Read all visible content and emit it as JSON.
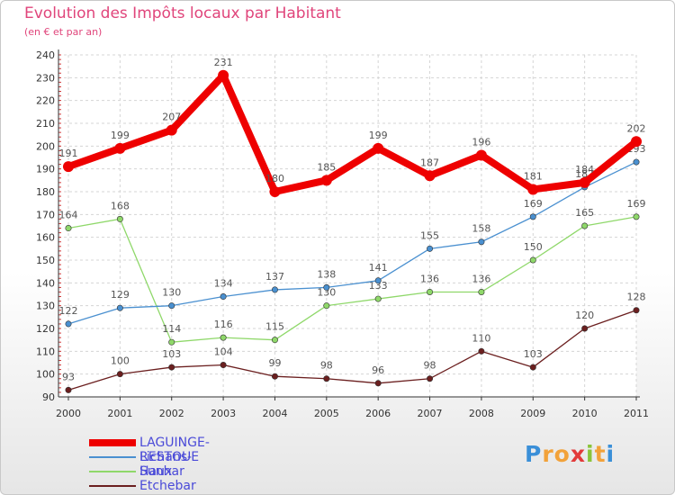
{
  "title": "Evolution des Impôts locaux par Habitant",
  "subtitle": "(en € et par an)",
  "logo": {
    "chars": [
      "P",
      "r",
      "o",
      "x",
      "i",
      "t",
      "i"
    ],
    "colors": [
      "#3a8fd8",
      "#f2a23a",
      "#f2a23a",
      "#e23a3a",
      "#8ac43a",
      "#f2a23a",
      "#3a8fd8"
    ]
  },
  "chart_data": {
    "type": "line",
    "title": "Evolution des Impôts locaux par Habitant",
    "subtitle": "(en € et par an)",
    "categories": [
      "2000",
      "2001",
      "2002",
      "2003",
      "2004",
      "2005",
      "2006",
      "2007",
      "2008",
      "2009",
      "2010",
      "2011"
    ],
    "ylim": [
      90,
      240
    ],
    "yticks": [
      90,
      100,
      110,
      120,
      130,
      140,
      150,
      160,
      170,
      180,
      190,
      200,
      210,
      220,
      230,
      240
    ],
    "series": [
      {
        "name": "Etchebar",
        "color": "#6b1f1f",
        "values": [
          93,
          100,
          103,
          104,
          99,
          98,
          96,
          98,
          110,
          103,
          120,
          128
        ]
      },
      {
        "name": "Haux",
        "color": "#8fd86a",
        "values": [
          164,
          168,
          114,
          116,
          115,
          130,
          133,
          136,
          136,
          150,
          165,
          169
        ]
      },
      {
        "name": "Lichans-Sunhar",
        "color": "#4a90d0",
        "values": [
          122,
          129,
          130,
          134,
          137,
          138,
          141,
          155,
          158,
          169,
          182,
          193
        ]
      },
      {
        "name": "LAGUINGE-RESTOUE",
        "color": "#ee0000",
        "values": [
          191,
          199,
          207,
          231,
          180,
          185,
          199,
          187,
          196,
          181,
          184,
          202
        ]
      }
    ],
    "legend": [
      "LAGUINGE-RESTOUE",
      "Lichans-Sunhar",
      "Haux",
      "Etchebar"
    ],
    "legend_position": "bottom-left",
    "grid": true
  }
}
